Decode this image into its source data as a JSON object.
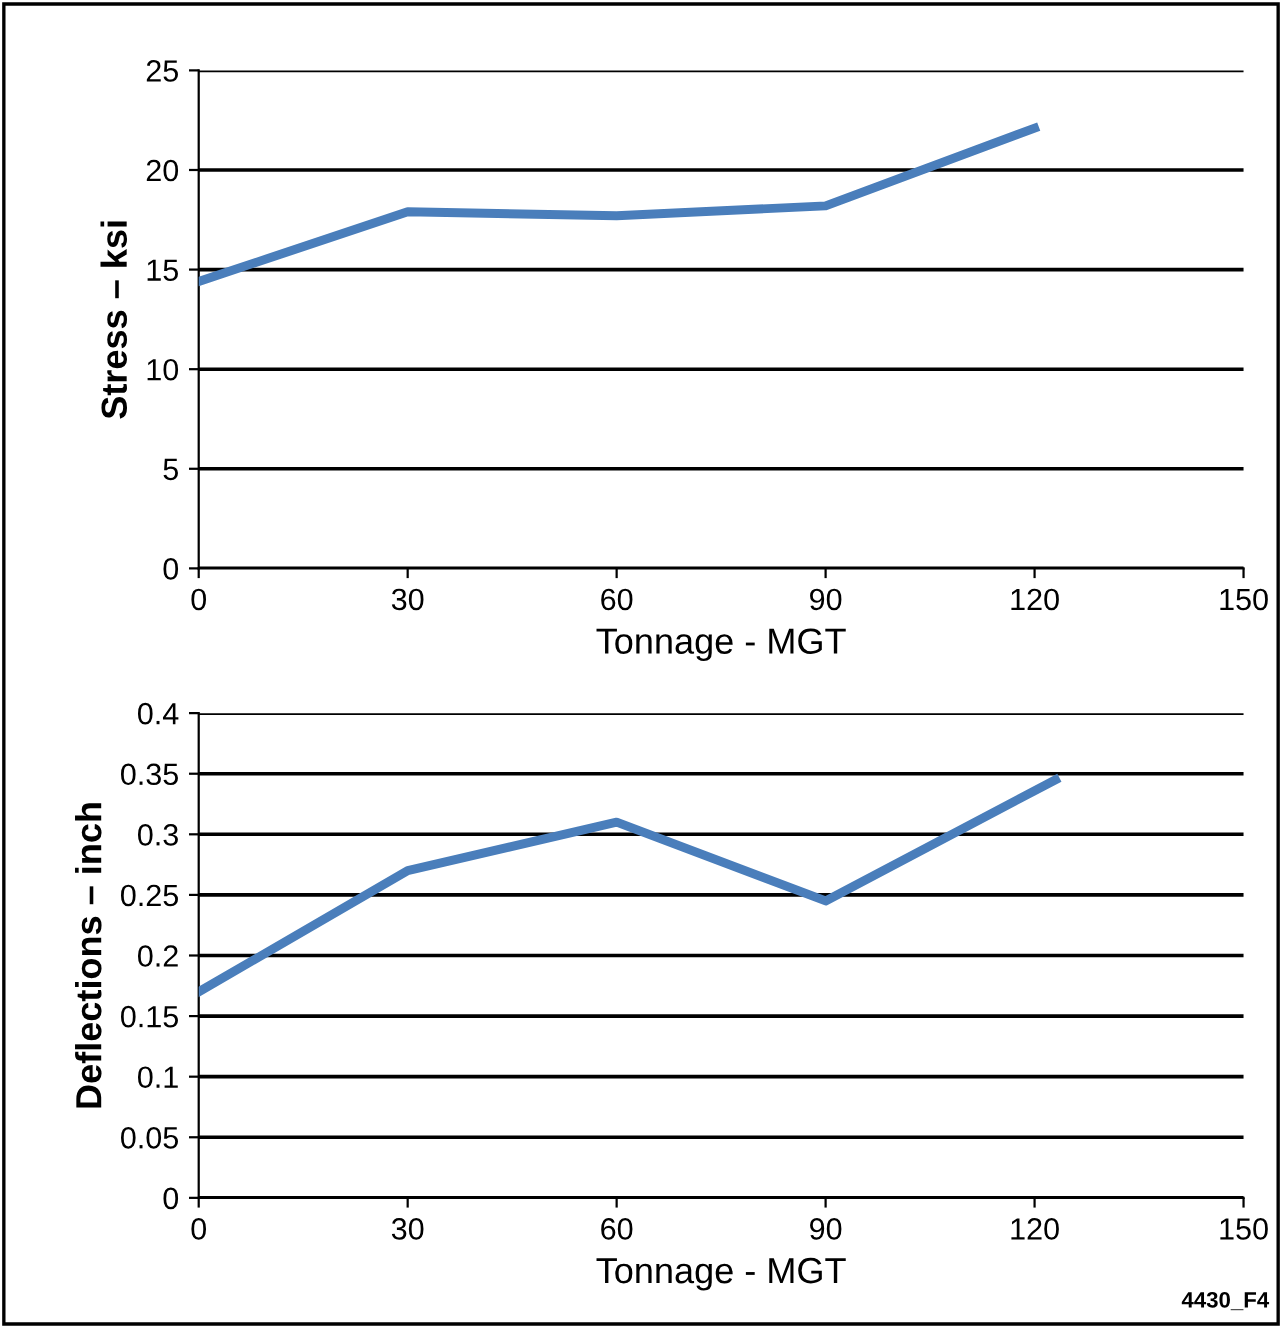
{
  "chart_data": [
    {
      "type": "line",
      "ylabel": "Stress – ksi",
      "xlabel": "Tonnage - MGT",
      "x": [
        0,
        30,
        60,
        90,
        120
      ],
      "series": [
        {
          "color": "#4a7ebb",
          "values": [
            14.4,
            17.9,
            17.7,
            18.2,
            22.1
          ]
        }
      ],
      "xlim": [
        0,
        150
      ],
      "xticks": [
        0,
        30,
        60,
        90,
        120,
        150
      ],
      "ylim": [
        0,
        25
      ],
      "yticks": [
        0,
        5,
        10,
        15,
        20,
        25
      ],
      "grid": "y",
      "legend": false,
      "marker": "none",
      "line_style": "solid"
    },
    {
      "type": "line",
      "ylabel": "Deflections – inch",
      "xlabel": "Tonnage - MGT",
      "x": [
        0,
        30,
        60,
        90,
        123
      ],
      "series": [
        {
          "color": "#4a7ebb",
          "values": [
            0.17,
            0.27,
            0.31,
            0.245,
            0.345
          ]
        }
      ],
      "xlim": [
        0,
        150
      ],
      "xticks": [
        0,
        30,
        60,
        90,
        120,
        150
      ],
      "ylim": [
        0,
        0.4
      ],
      "yticks": [
        0,
        0.05,
        0.1,
        0.15,
        0.2,
        0.25,
        0.3,
        0.35,
        0.4
      ],
      "grid": "y",
      "legend": false,
      "marker": "none",
      "line_style": "solid",
      "annotations": [
        "4430_F4"
      ]
    }
  ]
}
